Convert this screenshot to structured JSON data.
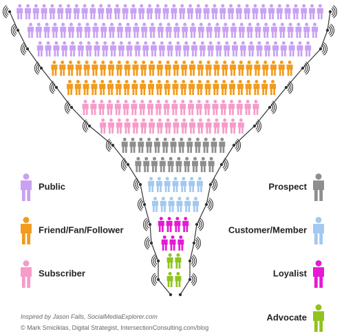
{
  "legend": [
    {
      "label": "Public",
      "color": "#c9a1f2"
    },
    {
      "label": "Friend/Fan/Follower",
      "color": "#f29b1d"
    },
    {
      "label": "Subscriber",
      "color": "#f59cc9"
    },
    {
      "label": "Prospect",
      "color": "#8e8e8e"
    },
    {
      "label": "Customer/Member",
      "color": "#a3c9f0"
    },
    {
      "label": "Loyalist",
      "color": "#e51ad4"
    },
    {
      "label": "Advocate",
      "color": "#8fc31f"
    }
  ],
  "credits": {
    "inspiration": "Inspired by Jason Falls, SocialMediaExplorer.com",
    "author": "© Mark Smiciklas, Digital Strategist, IntersectionConsulting.com/blog"
  }
}
